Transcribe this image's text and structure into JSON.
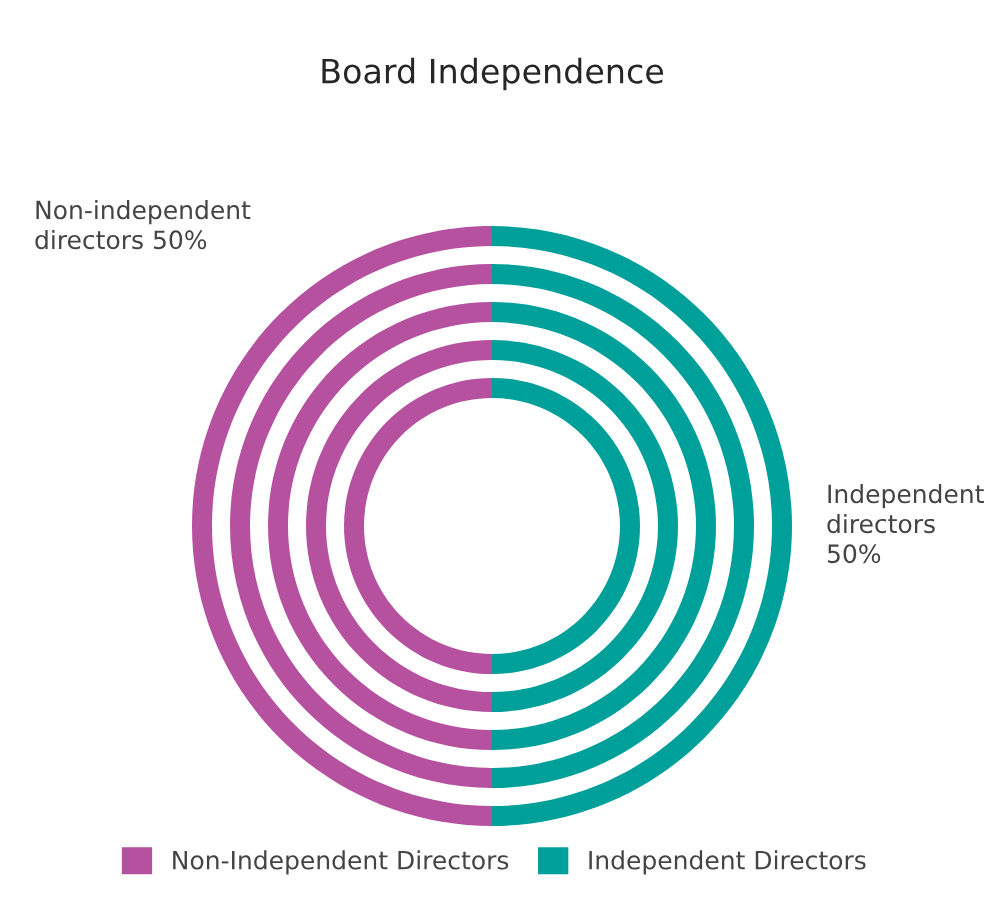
{
  "chart_data": {
    "type": "donut",
    "title": "Board Independence",
    "categories": [
      "Non-Independent Directors",
      "Independent Directors"
    ],
    "colors": [
      "#b5519f",
      "#00a09a"
    ],
    "series": [
      {
        "values": [
          50,
          50
        ]
      },
      {
        "values": [
          50,
          50
        ]
      },
      {
        "values": [
          50,
          50
        ]
      },
      {
        "values": [
          50,
          50
        ]
      },
      {
        "values": [
          50,
          50
        ]
      }
    ],
    "annotations": [
      "Non-independent\ndirectors 50%",
      "Independent\ndirectors\n50%"
    ],
    "legend": "bottom"
  }
}
